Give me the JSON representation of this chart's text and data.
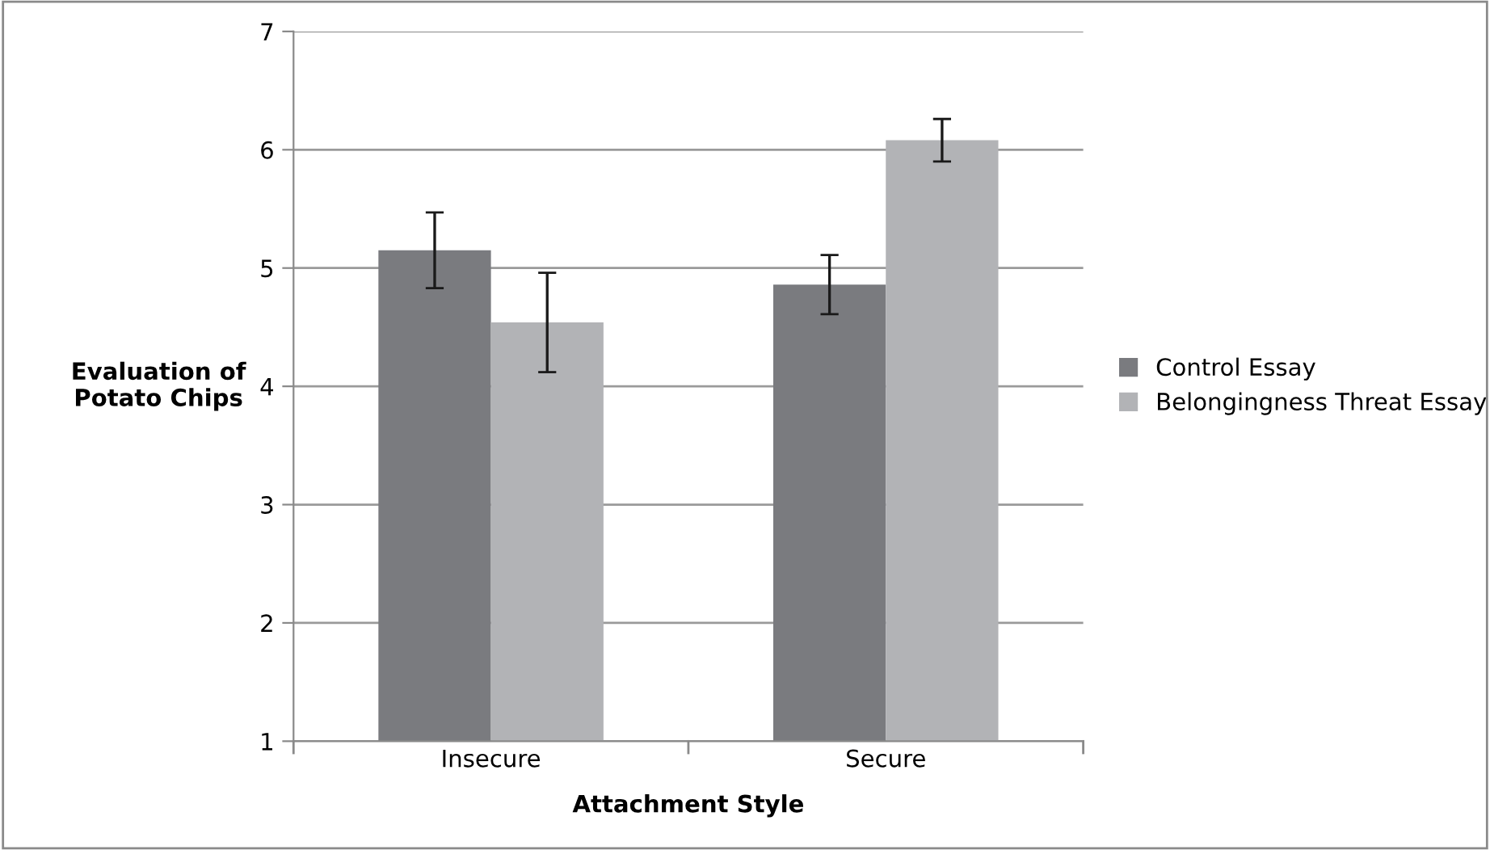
{
  "chart_data": {
    "type": "bar",
    "xlabel": "Attachment Style",
    "ylabel": "Evaluation of\nPotato Chips",
    "categories": [
      "Insecure",
      "Secure"
    ],
    "series": [
      {
        "name": "Control Essay",
        "color": "#7a7b7f",
        "values": [
          5.15,
          4.86
        ],
        "errors": [
          0.32,
          0.25
        ]
      },
      {
        "name": "Belongingness Threat Essay",
        "color": "#b2b3b6",
        "values": [
          4.54,
          6.08
        ],
        "errors": [
          0.42,
          0.18
        ]
      }
    ],
    "ylim": [
      1,
      7
    ],
    "yticks": [
      1,
      2,
      3,
      4,
      5,
      6,
      7
    ],
    "grid": "y",
    "legend": "right"
  }
}
